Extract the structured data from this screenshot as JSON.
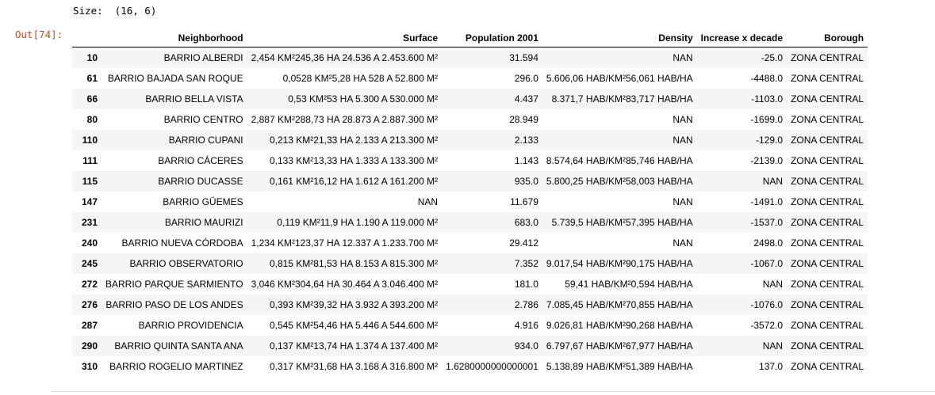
{
  "cell": {
    "size_line": "Size:  (16, 6)",
    "out_prompt": "Out[74]:"
  },
  "table": {
    "columns": [
      "Neighborhood",
      "Surface",
      "Population 2001",
      "Density",
      "Increase x decade",
      "Borough"
    ],
    "rows": [
      {
        "index": "10",
        "neighborhood": "BARRIO ALBERDI",
        "surface": "2,454 KM²245,36 HA 24.536 A 2.453.600 M²",
        "population": "31.594",
        "density": "NAN",
        "increase": "-25.0",
        "borough": "ZONA CENTRAL"
      },
      {
        "index": "61",
        "neighborhood": "BARRIO BAJADA SAN ROQUE",
        "surface": "0,0528 KM²5,28 HA 528 A 52.800 M²",
        "population": "296.0",
        "density": "5.606,06 HAB/KM²56,061 HAB/HA",
        "increase": "-4488.0",
        "borough": "ZONA CENTRAL"
      },
      {
        "index": "66",
        "neighborhood": "BARRIO BELLA VISTA",
        "surface": "0,53 KM²53 HA 5.300 A 530.000 M²",
        "population": "4.437",
        "density": "8.371,7 HAB/KM²83,717 HAB/HA",
        "increase": "-1103.0",
        "borough": "ZONA CENTRAL"
      },
      {
        "index": "80",
        "neighborhood": "BARRIO CENTRO",
        "surface": "2,887 KM²288,73 HA 28.873 A 2.887.300 M²",
        "population": "28.949",
        "density": "NAN",
        "increase": "-1699.0",
        "borough": "ZONA CENTRAL"
      },
      {
        "index": "110",
        "neighborhood": "BARRIO CUPANI",
        "surface": "0,213 KM²21,33 HA 2.133 A 213.300 M²",
        "population": "2.133",
        "density": "NAN",
        "increase": "-129.0",
        "borough": "ZONA CENTRAL"
      },
      {
        "index": "111",
        "neighborhood": "BARRIO CÁCERES",
        "surface": "0,133 KM²13,33 HA 1.333 A 133.300 M²",
        "population": "1.143",
        "density": "8.574,64 HAB/KM²85,746 HAB/HA",
        "increase": "-2139.0",
        "borough": "ZONA CENTRAL"
      },
      {
        "index": "115",
        "neighborhood": "BARRIO DUCASSE",
        "surface": "0,161 KM²16,12 HA 1.612 A 161.200 M²",
        "population": "935.0",
        "density": "5.800,25 HAB/KM²58,003 HAB/HA",
        "increase": "NAN",
        "borough": "ZONA CENTRAL"
      },
      {
        "index": "147",
        "neighborhood": "BARRIO GÜEMES",
        "surface": "NAN",
        "population": "11.679",
        "density": "NAN",
        "increase": "-1491.0",
        "borough": "ZONA CENTRAL"
      },
      {
        "index": "231",
        "neighborhood": "BARRIO MAURIZI",
        "surface": "0,119 KM²11,9 HA 1.190 A 119.000 M²",
        "population": "683.0",
        "density": "5.739,5 HAB/KM²57,395 HAB/HA",
        "increase": "-1537.0",
        "borough": "ZONA CENTRAL"
      },
      {
        "index": "240",
        "neighborhood": "BARRIO NUEVA CÓRDOBA",
        "surface": "1,234 KM²123,37 HA 12.337 A 1.233.700 M²",
        "population": "29.412",
        "density": "NAN",
        "increase": "2498.0",
        "borough": "ZONA CENTRAL"
      },
      {
        "index": "245",
        "neighborhood": "BARRIO OBSERVATORIO",
        "surface": "0,815 KM²81,53 HA 8.153 A 815.300 M²",
        "population": "7.352",
        "density": "9.017,54 HAB/KM²90,175 HAB/HA",
        "increase": "-1067.0",
        "borough": "ZONA CENTRAL"
      },
      {
        "index": "272",
        "neighborhood": "BARRIO PARQUE SARMIENTO",
        "surface": "3,046 KM²304,64 HA 30.464 A 3.046.400 M²",
        "population": "181.0",
        "density": "59,41 HAB/KM²0,594 HAB/HA",
        "increase": "NAN",
        "borough": "ZONA CENTRAL"
      },
      {
        "index": "276",
        "neighborhood": "BARRIO PASO DE LOS ANDES",
        "surface": "0,393 KM²39,32 HA 3.932 A 393.200 M²",
        "population": "2.786",
        "density": "7.085,45 HAB/KM²70,855 HAB/HA",
        "increase": "-1076.0",
        "borough": "ZONA CENTRAL"
      },
      {
        "index": "287",
        "neighborhood": "BARRIO PROVIDENCIA",
        "surface": "0,545 KM²54,46 HA 5.446 A 544.600 M²",
        "population": "4.916",
        "density": "9.026,81 HAB/KM²90,268 HAB/HA",
        "increase": "-3572.0",
        "borough": "ZONA CENTRAL"
      },
      {
        "index": "290",
        "neighborhood": "BARRIO QUINTA SANTA ANA",
        "surface": "0,137 KM²13,74 HA 1.374 A 137.400 M²",
        "population": "934.0",
        "density": "6.797,67 HAB/KM²67,977 HAB/HA",
        "increase": "NAN",
        "borough": "ZONA CENTRAL"
      },
      {
        "index": "310",
        "neighborhood": "BARRIO ROGELIO MARTINEZ",
        "surface": "0,317 KM²31,68 HA 3.168 A 316.800 M²",
        "population": "1.6280000000000001",
        "density": "5.138,89 HAB/KM²51,389 HAB/HA",
        "increase": "137.0",
        "borough": "ZONA CENTRAL"
      }
    ]
  }
}
